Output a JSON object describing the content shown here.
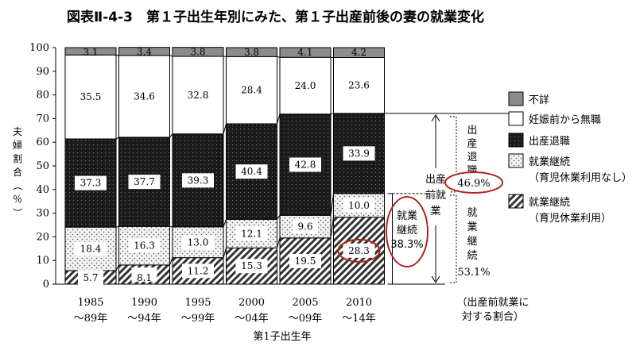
{
  "chart_data": {
    "type": "bar",
    "stacked": true,
    "title": "図表Ⅱ-4-3　第１子出生年別にみた、第１子出産前後の妻の就業変化",
    "ylabel": "夫婦割合（％）",
    "xlabel": "第1子出生年",
    "ylim": [
      0,
      100
    ],
    "yticks": [
      0,
      10,
      20,
      30,
      40,
      50,
      60,
      70,
      80,
      90,
      100
    ],
    "categories": [
      {
        "line1": "1985",
        "line2": "～89年"
      },
      {
        "line1": "1990",
        "line2": "～94年"
      },
      {
        "line1": "1995",
        "line2": "～99年"
      },
      {
        "line1": "2000",
        "line2": "～04年"
      },
      {
        "line1": "2005",
        "line2": "～09年"
      },
      {
        "line1": "2010",
        "line2": "～14年"
      }
    ],
    "series": [
      {
        "key": "ikukyu",
        "values": [
          5.7,
          8.1,
          11.2,
          15.3,
          19.5,
          28.3
        ]
      },
      {
        "key": "keizoku_nashi",
        "values": [
          18.4,
          16.3,
          13.0,
          12.1,
          9.6,
          10.0
        ]
      },
      {
        "key": "taishoku",
        "values": [
          37.3,
          37.7,
          39.3,
          40.4,
          42.8,
          33.9
        ]
      },
      {
        "key": "mushoku",
        "values": [
          35.5,
          34.6,
          32.8,
          28.4,
          24.0,
          23.6
        ]
      },
      {
        "key": "fusho",
        "values": [
          3.1,
          3.4,
          3.8,
          3.8,
          4.1,
          4.2
        ]
      }
    ],
    "value_labels": [
      [
        "5.7",
        "8.1",
        "11.2",
        "15.3",
        "19.5",
        "28.3"
      ],
      [
        "18.4",
        "16.3",
        "13.0",
        "12.1",
        "9.6",
        "10.0"
      ],
      [
        "37.3",
        "37.7",
        "39.3",
        "40.4",
        "42.8",
        "33.9"
      ],
      [
        "35.5",
        "34.6",
        "32.8",
        "28.4",
        "24.0",
        "23.6"
      ],
      [
        "3.1",
        "3.4",
        "3.8",
        "3.8",
        "4.1",
        "4.2"
      ]
    ],
    "legend": [
      {
        "label": "不詳",
        "sub": ""
      },
      {
        "label": "妊娠前から無職",
        "sub": ""
      },
      {
        "label": "出産退職",
        "sub": ""
      },
      {
        "label": "就業継続",
        "sub": "（育児休業利用なし）"
      },
      {
        "label": "就業継続",
        "sub": "（育児休業利用）"
      }
    ],
    "legend_placement": "right",
    "annotations": {
      "keizoku_total_label": [
        "就業",
        "継続",
        "38.3%"
      ],
      "pre_birth_employed_label": [
        "出産",
        "前就",
        "業"
      ],
      "birth_retire_label": [
        "出産",
        "退職"
      ],
      "birth_retire_pct": "46.9%",
      "continued_label": [
        "就業",
        "継続"
      ],
      "continued_pct": "53.1%",
      "footnote": [
        "（出産前就業に",
        "対する割合）"
      ]
    }
  }
}
